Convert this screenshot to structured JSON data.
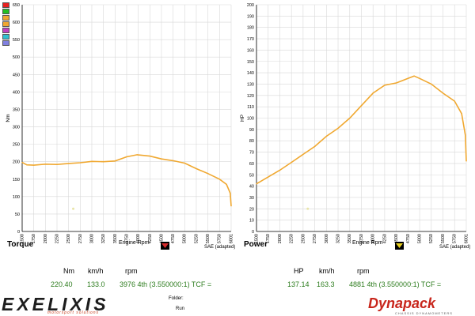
{
  "chart_data": [
    {
      "type": "line",
      "title": "Torque",
      "xlabel": "Engine Rpm",
      "ylabel": "Nm",
      "note": "SAE (adapted)",
      "xlim": [
        1500,
        6001
      ],
      "ylim": [
        0,
        650
      ],
      "x_ticks": [
        "1500",
        "1750",
        "2000",
        "2250",
        "2500",
        "2750",
        "3000",
        "3250",
        "3500",
        "3750",
        "4000",
        "4250",
        "4500",
        "4750",
        "5000",
        "5250",
        "5500",
        "5750",
        "6001"
      ],
      "y_ticks": [
        "0",
        "50",
        "100",
        "150",
        "200",
        "250",
        "300",
        "350",
        "400",
        "450",
        "500",
        "550",
        "600",
        "650"
      ],
      "series_color": "#f0a830",
      "series": [
        {
          "x": [
            1500,
            1600,
            1750,
            2000,
            2250,
            2500,
            2750,
            3000,
            3250,
            3500,
            3750,
            3976,
            4250,
            4500,
            4750,
            5000,
            5250,
            5500,
            5750,
            5900,
            5980,
            6001
          ],
          "y": [
            198,
            191,
            190,
            193,
            192,
            195,
            197,
            201,
            200,
            202,
            214,
            220,
            216,
            208,
            203,
            196,
            180,
            166,
            150,
            135,
            110,
            73
          ]
        }
      ],
      "marker": {
        "x": 2600,
        "y": 65,
        "color": "#e8e4a8"
      },
      "marker_color": "#d42a2a",
      "swatches": [
        "#e82020",
        "#22c022",
        "#f0a830",
        "#f0a830",
        "#c040c0",
        "#30c0d0",
        "#8080e0"
      ],
      "readout": {
        "headers": [
          "Nm",
          "km/h",
          "rpm"
        ],
        "values": [
          "220.40",
          "133.0",
          "3976 4th (3.550000:1) TCF ="
        ]
      }
    },
    {
      "type": "line",
      "title": "Power",
      "xlabel": "Engine Rpm",
      "ylabel": "HP",
      "note": "SAE (adapted)",
      "xlim": [
        1500,
        6001
      ],
      "ylim": [
        0,
        200
      ],
      "x_ticks": [
        "1500",
        "1750",
        "2000",
        "2250",
        "2500",
        "2750",
        "3000",
        "3250",
        "3500",
        "3750",
        "4000",
        "4250",
        "4500",
        "4750",
        "5000",
        "5250",
        "5500",
        "5750",
        "6001"
      ],
      "y_ticks": [
        "0",
        "10",
        "20",
        "30",
        "40",
        "50",
        "60",
        "70",
        "80",
        "90",
        "100",
        "110",
        "120",
        "130",
        "140",
        "150",
        "160",
        "170",
        "180",
        "190",
        "200"
      ],
      "series_color": "#f0a830",
      "series": [
        {
          "x": [
            1500,
            1750,
            2000,
            2250,
            2500,
            2750,
            3000,
            3250,
            3500,
            3750,
            4000,
            4250,
            4500,
            4750,
            4881,
            5000,
            5250,
            5500,
            5750,
            5900,
            5980,
            6001
          ],
          "y": [
            42,
            48,
            54,
            61,
            68,
            75,
            84,
            91,
            100,
            111,
            122,
            129,
            131,
            135,
            137.14,
            135,
            130,
            122,
            115,
            104,
            85,
            62
          ]
        }
      ],
      "marker": {
        "x": 2600,
        "y": 20,
        "color": "#e8e4a8"
      },
      "marker_color": "#e8d020",
      "readout": {
        "headers": [
          "HP",
          "km/h",
          "rpm"
        ],
        "values": [
          "137.14",
          "163.3",
          "4881 4th (3.550000:1) TCF ="
        ]
      }
    }
  ],
  "footer": {
    "left_logo": "EXELIXIS",
    "left_tagline": "motorsport solutions",
    "folder_label": "Folder:",
    "run_label": "Run",
    "right_logo": "Dynapack",
    "right_tagline": "CHASSIS DYNAMOMETERS"
  }
}
